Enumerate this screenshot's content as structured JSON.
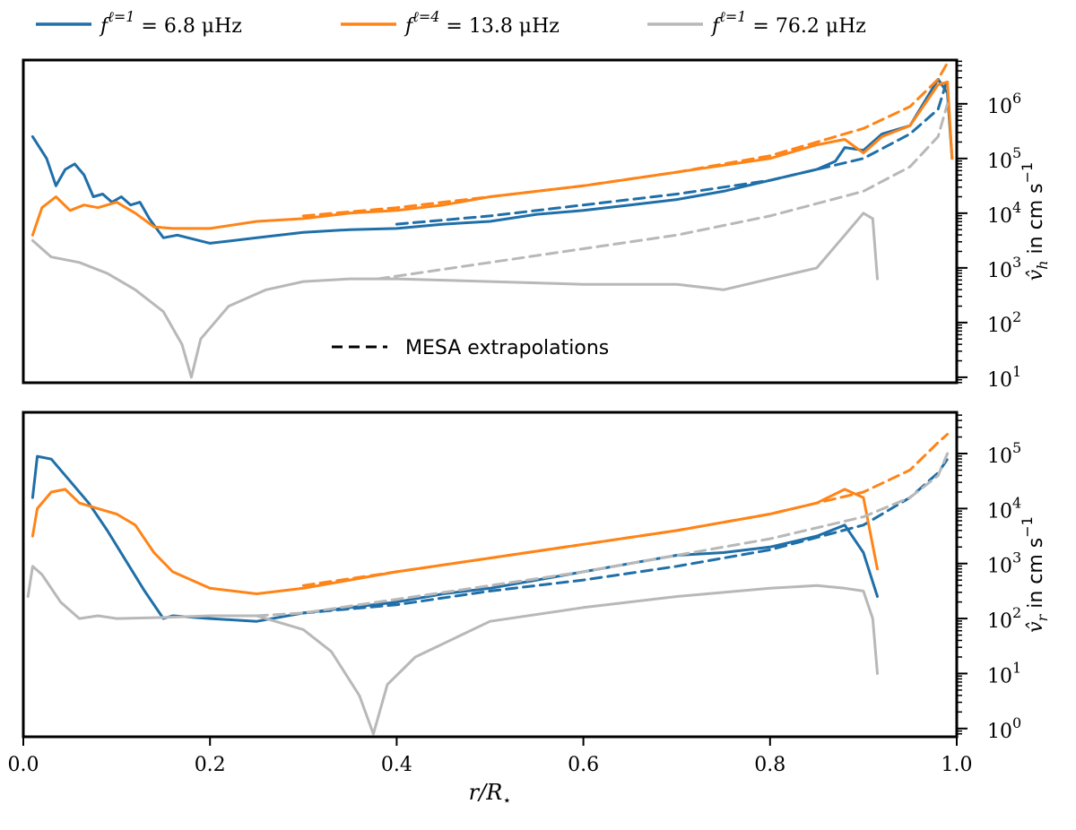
{
  "colors": {
    "blue": "#1f6fa8",
    "orange": "#ff8417",
    "gray": "#b8b8b8",
    "black": "#000000"
  },
  "legend": {
    "entries": [
      {
        "name": "f^{ℓ=1} = 6.8 μHz",
        "prefix": "f",
        "sup": "ℓ=1",
        "suffix": " = 6.8 μHz",
        "color": "blue"
      },
      {
        "name": "f^{ℓ=4} = 13.8 μHz",
        "prefix": "f",
        "sup": "ℓ=4",
        "suffix": " = 13.8 μHz",
        "color": "orange"
      },
      {
        "name": "f^{ℓ=1} = 76.2 μHz",
        "prefix": "f",
        "sup": "ℓ=1",
        "suffix": " = 76.2 μHz",
        "color": "gray"
      }
    ],
    "mesa_label": "MESA extrapolations"
  },
  "chart_data": [
    {
      "type": "line",
      "title": "",
      "xlabel": "",
      "ylabel": "v̂_h in cm s^-1",
      "ylabel_symbol": "v̂",
      "ylabel_sub": "h",
      "ylabel_unit": "in cm s",
      "ylabel_exp": "−1",
      "yscale": "log",
      "xlim": [
        0.0,
        1.0
      ],
      "ylim_log10": [
        0.9,
        6.8
      ],
      "yticks": [
        {
          "label": "10",
          "exp": "1"
        },
        {
          "label": "10",
          "exp": "2"
        },
        {
          "label": "10",
          "exp": "3"
        },
        {
          "label": "10",
          "exp": "4"
        },
        {
          "label": "10",
          "exp": "5"
        },
        {
          "label": "10",
          "exp": "6"
        }
      ],
      "series": [
        {
          "name": "f^{ℓ=1} = 6.8 μHz (simulation)",
          "color": "blue",
          "style": "solid",
          "x": [
            0.01,
            0.025,
            0.035,
            0.045,
            0.055,
            0.065,
            0.075,
            0.085,
            0.095,
            0.105,
            0.115,
            0.125,
            0.135,
            0.15,
            0.165,
            0.2,
            0.25,
            0.3,
            0.35,
            0.4,
            0.45,
            0.5,
            0.55,
            0.6,
            0.65,
            0.7,
            0.75,
            0.8,
            0.85,
            0.87,
            0.88,
            0.9,
            0.92,
            0.95,
            0.98,
            0.99,
            0.995
          ],
          "y_log10": [
            5.4,
            5.0,
            4.5,
            4.8,
            4.9,
            4.7,
            4.3,
            4.35,
            4.2,
            4.3,
            4.15,
            4.2,
            3.9,
            3.55,
            3.6,
            3.45,
            3.55,
            3.65,
            3.7,
            3.72,
            3.8,
            3.85,
            3.98,
            4.05,
            4.15,
            4.25,
            4.4,
            4.6,
            4.8,
            4.95,
            5.2,
            5.15,
            5.45,
            5.6,
            6.45,
            6.2,
            5.0
          ]
        },
        {
          "name": "f^{ℓ=1} = 6.8 μHz (MESA extrapolation)",
          "color": "blue",
          "style": "dashed",
          "x": [
            0.4,
            0.5,
            0.6,
            0.7,
            0.8,
            0.9,
            0.95,
            0.98,
            0.99
          ],
          "y_log10": [
            3.8,
            3.95,
            4.15,
            4.35,
            4.6,
            5.0,
            5.45,
            5.9,
            6.45
          ]
        },
        {
          "name": "f^{ℓ=4} = 13.8 μHz (simulation)",
          "color": "orange",
          "style": "solid",
          "x": [
            0.01,
            0.02,
            0.035,
            0.05,
            0.065,
            0.08,
            0.1,
            0.12,
            0.14,
            0.16,
            0.2,
            0.25,
            0.3,
            0.35,
            0.4,
            0.45,
            0.5,
            0.6,
            0.7,
            0.8,
            0.85,
            0.88,
            0.9,
            0.92,
            0.95,
            0.98,
            0.99,
            0.995
          ],
          "y_log10": [
            3.6,
            4.1,
            4.3,
            4.05,
            4.15,
            4.1,
            4.2,
            4.0,
            3.75,
            3.72,
            3.72,
            3.85,
            3.9,
            4.0,
            4.05,
            4.15,
            4.3,
            4.5,
            4.75,
            5.0,
            5.25,
            5.35,
            5.1,
            5.4,
            5.6,
            6.35,
            6.4,
            5.0
          ]
        },
        {
          "name": "f^{ℓ=4} = 13.8 μHz (MESA extrapolation)",
          "color": "orange",
          "style": "dashed",
          "x": [
            0.3,
            0.4,
            0.5,
            0.6,
            0.7,
            0.8,
            0.9,
            0.95,
            0.98,
            0.99
          ],
          "y_log10": [
            3.95,
            4.1,
            4.3,
            4.5,
            4.75,
            5.05,
            5.55,
            5.95,
            6.45,
            6.75
          ]
        },
        {
          "name": "f^{ℓ=1} = 76.2 μHz (simulation)",
          "color": "gray",
          "style": "solid",
          "x": [
            0.01,
            0.03,
            0.06,
            0.09,
            0.12,
            0.15,
            0.17,
            0.18,
            0.19,
            0.22,
            0.26,
            0.3,
            0.35,
            0.4,
            0.5,
            0.6,
            0.7,
            0.75,
            0.8,
            0.85,
            0.88,
            0.9,
            0.91,
            0.915
          ],
          "y_log10": [
            3.5,
            3.2,
            3.1,
            2.9,
            2.6,
            2.2,
            1.6,
            1.0,
            1.7,
            2.3,
            2.6,
            2.75,
            2.8,
            2.8,
            2.75,
            2.7,
            2.7,
            2.6,
            2.8,
            3.0,
            3.6,
            4.0,
            3.9,
            2.8
          ]
        },
        {
          "name": "f^{ℓ=1} = 76.2 μHz (MESA extrapolation)",
          "color": "gray",
          "style": "dashed",
          "x": [
            0.38,
            0.5,
            0.6,
            0.7,
            0.8,
            0.9,
            0.95,
            0.98,
            0.99
          ],
          "y_log10": [
            2.8,
            3.1,
            3.35,
            3.6,
            3.95,
            4.4,
            4.85,
            5.4,
            6.0
          ]
        }
      ]
    },
    {
      "type": "line",
      "title": "",
      "xlabel": "r/R⋆",
      "xlabel_symbol": "r/R",
      "xlabel_sub": "⋆",
      "ylabel": "v̂_r in cm s^-1",
      "ylabel_symbol": "v̂",
      "ylabel_sub": "r",
      "ylabel_unit": "in cm s",
      "ylabel_exp": "−1",
      "yscale": "log",
      "xlim": [
        0.0,
        1.0
      ],
      "ylim_log10": [
        -0.15,
        5.75
      ],
      "xticks": [
        "0.0",
        "0.2",
        "0.4",
        "0.6",
        "0.8",
        "1.0"
      ],
      "yticks": [
        {
          "label": "10",
          "exp": "0"
        },
        {
          "label": "10",
          "exp": "1"
        },
        {
          "label": "10",
          "exp": "2"
        },
        {
          "label": "10",
          "exp": "3"
        },
        {
          "label": "10",
          "exp": "4"
        },
        {
          "label": "10",
          "exp": "5"
        }
      ],
      "series": [
        {
          "name": "f^{ℓ=1} = 6.8 μHz (simulation)",
          "color": "blue",
          "style": "solid",
          "x": [
            0.01,
            0.015,
            0.03,
            0.05,
            0.07,
            0.09,
            0.11,
            0.13,
            0.15,
            0.16,
            0.2,
            0.25,
            0.3,
            0.35,
            0.4,
            0.45,
            0.5,
            0.55,
            0.6,
            0.65,
            0.7,
            0.75,
            0.8,
            0.85,
            0.88,
            0.9,
            0.915
          ],
          "y_log10": [
            4.2,
            4.95,
            4.9,
            4.5,
            4.1,
            3.6,
            3.05,
            2.5,
            2.0,
            2.05,
            2.0,
            1.95,
            2.1,
            2.2,
            2.3,
            2.45,
            2.55,
            2.7,
            2.85,
            3.0,
            3.15,
            3.2,
            3.3,
            3.5,
            3.7,
            3.2,
            2.4
          ]
        },
        {
          "name": "f^{ℓ=1} = 6.8 μHz (MESA extrapolation)",
          "color": "blue",
          "style": "dashed",
          "x": [
            0.3,
            0.4,
            0.5,
            0.6,
            0.7,
            0.8,
            0.9,
            0.95,
            0.98,
            0.99
          ],
          "y_log10": [
            2.1,
            2.25,
            2.5,
            2.7,
            2.95,
            3.25,
            3.7,
            4.2,
            4.65,
            4.9
          ]
        },
        {
          "name": "f^{ℓ=4} = 13.8 μHz (simulation)",
          "color": "orange",
          "style": "solid",
          "x": [
            0.01,
            0.015,
            0.03,
            0.045,
            0.06,
            0.08,
            0.1,
            0.12,
            0.14,
            0.16,
            0.2,
            0.25,
            0.3,
            0.35,
            0.4,
            0.5,
            0.6,
            0.7,
            0.8,
            0.85,
            0.88,
            0.9,
            0.915
          ],
          "y_log10": [
            3.5,
            4.0,
            4.3,
            4.35,
            4.1,
            4.0,
            3.9,
            3.7,
            3.2,
            2.85,
            2.55,
            2.45,
            2.55,
            2.7,
            2.85,
            3.1,
            3.35,
            3.6,
            3.9,
            4.1,
            4.35,
            4.2,
            2.9
          ]
        },
        {
          "name": "f^{ℓ=4} = 13.8 μHz (MESA extrapolation)",
          "color": "orange",
          "style": "dashed",
          "x": [
            0.3,
            0.4,
            0.5,
            0.6,
            0.7,
            0.8,
            0.9,
            0.95,
            0.98,
            0.99
          ],
          "y_log10": [
            2.6,
            2.85,
            3.1,
            3.35,
            3.6,
            3.9,
            4.3,
            4.7,
            5.2,
            5.35
          ]
        },
        {
          "name": "f^{ℓ=1} = 76.2 μHz (simulation)",
          "color": "gray",
          "style": "solid",
          "x": [
            0.005,
            0.01,
            0.02,
            0.04,
            0.06,
            0.08,
            0.1,
            0.15,
            0.2,
            0.25,
            0.3,
            0.33,
            0.36,
            0.375,
            0.39,
            0.42,
            0.5,
            0.6,
            0.7,
            0.8,
            0.85,
            0.88,
            0.9,
            0.91,
            0.915
          ],
          "y_log10": [
            2.4,
            2.95,
            2.8,
            2.3,
            2.0,
            2.05,
            2.0,
            2.02,
            2.05,
            2.05,
            1.8,
            1.4,
            0.6,
            -0.1,
            0.8,
            1.3,
            1.95,
            2.2,
            2.4,
            2.55,
            2.6,
            2.55,
            2.5,
            2.0,
            1.0
          ]
        },
        {
          "name": "f^{ℓ=1} = 76.2 μHz (MESA extrapolation)",
          "color": "gray",
          "style": "dashed",
          "x": [
            0.25,
            0.3,
            0.4,
            0.5,
            0.6,
            0.7,
            0.8,
            0.9,
            0.95,
            0.98,
            0.99
          ],
          "y_log10": [
            2.05,
            2.1,
            2.35,
            2.6,
            2.85,
            3.15,
            3.45,
            3.85,
            4.2,
            4.6,
            5.0
          ]
        }
      ]
    }
  ]
}
